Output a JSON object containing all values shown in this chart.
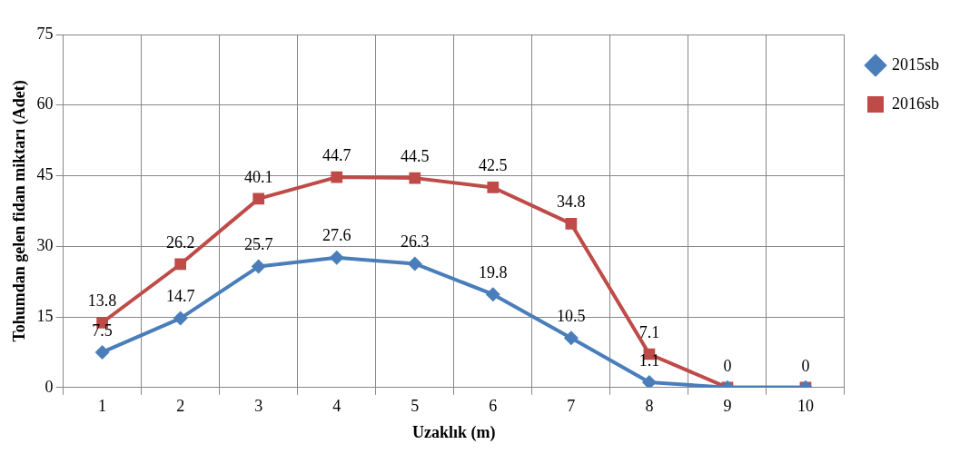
{
  "chart_data": {
    "type": "line",
    "xlabel": "Uzaklık (m)",
    "ylabel": "Tohumdan gelen fidan miktarı (Adet)",
    "categories": [
      "1",
      "2",
      "3",
      "4",
      "5",
      "6",
      "7",
      "8",
      "9",
      "10"
    ],
    "ylim": [
      0,
      75
    ],
    "yticks": [
      0,
      15,
      30,
      45,
      60,
      75
    ],
    "grid": true,
    "legend": "right",
    "line_style": "solid",
    "series": [
      {
        "name": "2015sb",
        "color": "#4a7ebb",
        "marker": "diamond",
        "values": [
          7.5,
          14.7,
          25.7,
          27.6,
          26.3,
          19.8,
          10.5,
          1.1,
          0,
          0
        ],
        "value_labels": [
          "7.5",
          "14.7",
          "25.7",
          "27.6",
          "26.3",
          "19.8",
          "10.5",
          "1.1",
          null,
          null
        ]
      },
      {
        "name": "2016sb",
        "color": "#be4b48",
        "marker": "square",
        "values": [
          13.8,
          26.2,
          40.1,
          44.7,
          44.5,
          42.5,
          34.8,
          7.1,
          0,
          0
        ],
        "value_labels": [
          "13.8",
          "26.2",
          "40.1",
          "44.7",
          "44.5",
          "42.5",
          "34.8",
          "7.1",
          "0",
          "0"
        ]
      }
    ]
  }
}
